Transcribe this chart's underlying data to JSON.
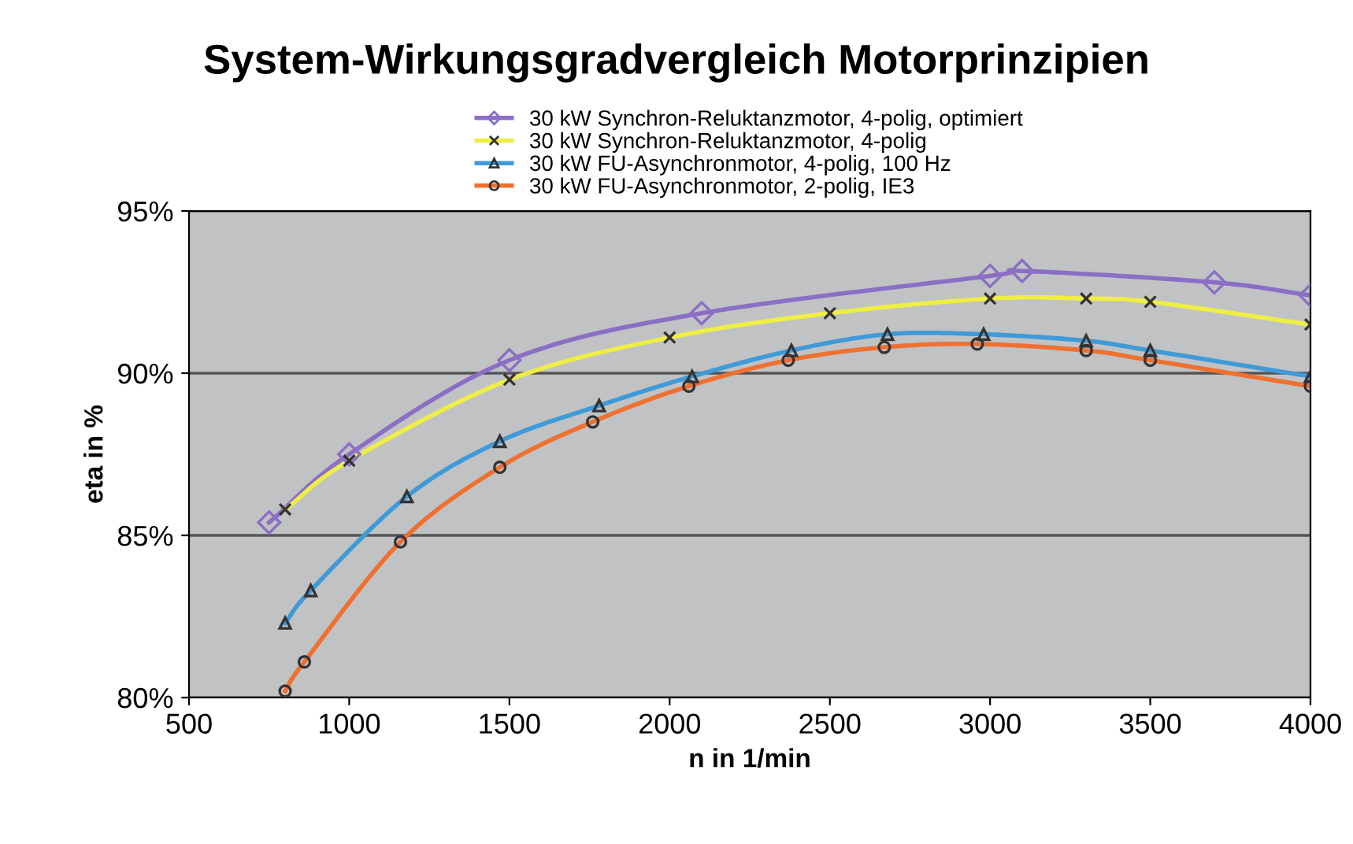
{
  "chart_data": {
    "type": "line",
    "title": "System-Wirkungsgradvergleich Motorprinzipien",
    "xlabel": "n in 1/min",
    "ylabel": "eta in %",
    "xlim": [
      500,
      4000
    ],
    "xticks": [
      500,
      1000,
      1500,
      2000,
      2500,
      3000,
      3500,
      4000
    ],
    "ylim": [
      80,
      95
    ],
    "yticks": [
      {
        "value": 80,
        "label": "80%"
      },
      {
        "value": 85,
        "label": "85%"
      },
      {
        "value": 90,
        "label": "90%"
      },
      {
        "value": 95,
        "label": "95%"
      }
    ],
    "grid": "y",
    "legend": "top",
    "series": [
      {
        "name": "30 kW Synchron-Reluktanzmotor, 4-polig, optimiert",
        "color": "#8a6fc4",
        "marker": "diamond",
        "x": [
          750,
          1000,
          1500,
          2100,
          3000,
          3100,
          3700,
          4000
        ],
        "values": [
          85.4,
          87.5,
          90.4,
          91.85,
          93.0,
          93.15,
          92.8,
          92.4
        ]
      },
      {
        "name": "30 kW Synchron-Reluktanzmotor, 4-polig",
        "color": "#eeee44",
        "marker": "cross",
        "x": [
          800,
          1000,
          1500,
          2000,
          2500,
          3000,
          3300,
          3500,
          4000
        ],
        "values": [
          85.8,
          87.3,
          89.8,
          91.1,
          91.85,
          92.3,
          92.3,
          92.2,
          91.5
        ]
      },
      {
        "name": "30 kW FU-Asynchronmotor, 4-polig, 100 Hz",
        "color": "#3f9ad8",
        "marker": "triangle",
        "x": [
          800,
          880,
          1180,
          1470,
          1780,
          2070,
          2380,
          2680,
          2980,
          3300,
          3500,
          4000
        ],
        "values": [
          82.3,
          83.3,
          86.2,
          87.9,
          89.0,
          89.9,
          90.7,
          91.2,
          91.2,
          91.0,
          90.7,
          89.9
        ]
      },
      {
        "name": "30 kW FU-Asynchronmotor, 2-polig, IE3",
        "color": "#f07030",
        "marker": "circle",
        "x": [
          800,
          860,
          1160,
          1470,
          1760,
          2060,
          2370,
          2670,
          2960,
          3300,
          3500,
          4000
        ],
        "values": [
          80.2,
          81.1,
          84.8,
          87.1,
          88.5,
          89.6,
          90.4,
          90.8,
          90.9,
          90.7,
          90.4,
          89.6
        ]
      }
    ]
  }
}
